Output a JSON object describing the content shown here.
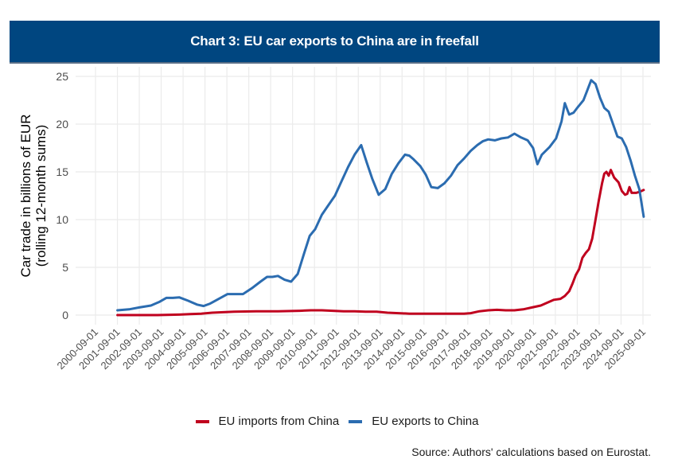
{
  "title": "Chart 3: EU car exports to China are in freefall",
  "source": "Source: Authors' calculations based on Eurostat.",
  "chart_data": {
    "type": "line",
    "title": "Chart 3: EU car exports to China are in freefall",
    "xlabel": "",
    "ylabel": [
      "Car trade in billions of EUR",
      "(rolling 12-month sums)"
    ],
    "ylim": [
      0,
      25
    ],
    "yticks": [
      0,
      5,
      10,
      15,
      20,
      25
    ],
    "xlim_years": [
      2000.0,
      2026.0
    ],
    "xticks": [
      {
        "t": 2000.667,
        "label": "2000-09-01"
      },
      {
        "t": 2001.667,
        "label": "2001-09-01"
      },
      {
        "t": 2002.667,
        "label": "2002-09-01"
      },
      {
        "t": 2003.667,
        "label": "2003-09-01"
      },
      {
        "t": 2004.667,
        "label": "2004-09-01"
      },
      {
        "t": 2005.667,
        "label": "2005-09-01"
      },
      {
        "t": 2006.667,
        "label": "2006-09-01"
      },
      {
        "t": 2007.667,
        "label": "2007-09-01"
      },
      {
        "t": 2008.667,
        "label": "2008-09-01"
      },
      {
        "t": 2009.667,
        "label": "2009-09-01"
      },
      {
        "t": 2010.667,
        "label": "2010-09-01"
      },
      {
        "t": 2011.667,
        "label": "2011-09-01"
      },
      {
        "t": 2012.667,
        "label": "2012-09-01"
      },
      {
        "t": 2013.667,
        "label": "2013-09-01"
      },
      {
        "t": 2014.667,
        "label": "2014-09-01"
      },
      {
        "t": 2015.667,
        "label": "2015-09-01"
      },
      {
        "t": 2016.667,
        "label": "2016-09-01"
      },
      {
        "t": 2017.667,
        "label": "2017-09-01"
      },
      {
        "t": 2018.667,
        "label": "2018-09-01"
      },
      {
        "t": 2019.667,
        "label": "2019-09-01"
      },
      {
        "t": 2020.667,
        "label": "2020-09-01"
      },
      {
        "t": 2021.667,
        "label": "2021-09-01"
      },
      {
        "t": 2022.667,
        "label": "2022-09-01"
      },
      {
        "t": 2023.667,
        "label": "2023-09-01"
      },
      {
        "t": 2024.667,
        "label": "2024-09-01"
      },
      {
        "t": 2025.667,
        "label": "2025-09-01"
      }
    ],
    "grid": true,
    "legend_position": "bottom",
    "series": [
      {
        "name": "EU imports from China",
        "color": "#c0001e",
        "points": [
          [
            2001.67,
            0.0
          ],
          [
            2002.5,
            0.0
          ],
          [
            2003.5,
            0.0
          ],
          [
            2004.5,
            0.05
          ],
          [
            2005.0,
            0.1
          ],
          [
            2005.5,
            0.15
          ],
          [
            2006.0,
            0.25
          ],
          [
            2006.5,
            0.3
          ],
          [
            2007.0,
            0.35
          ],
          [
            2008.0,
            0.4
          ],
          [
            2009.0,
            0.4
          ],
          [
            2010.0,
            0.45
          ],
          [
            2010.5,
            0.5
          ],
          [
            2011.0,
            0.5
          ],
          [
            2011.5,
            0.45
          ],
          [
            2012.0,
            0.4
          ],
          [
            2012.5,
            0.4
          ],
          [
            2013.0,
            0.35
          ],
          [
            2013.5,
            0.35
          ],
          [
            2014.0,
            0.25
          ],
          [
            2014.5,
            0.2
          ],
          [
            2015.0,
            0.15
          ],
          [
            2015.5,
            0.15
          ],
          [
            2016.0,
            0.15
          ],
          [
            2016.5,
            0.15
          ],
          [
            2017.0,
            0.15
          ],
          [
            2017.5,
            0.15
          ],
          [
            2017.8,
            0.2
          ],
          [
            2018.2,
            0.4
          ],
          [
            2018.6,
            0.5
          ],
          [
            2019.0,
            0.55
          ],
          [
            2019.4,
            0.5
          ],
          [
            2019.8,
            0.5
          ],
          [
            2020.2,
            0.6
          ],
          [
            2020.6,
            0.8
          ],
          [
            2021.0,
            1.0
          ],
          [
            2021.3,
            1.3
          ],
          [
            2021.6,
            1.6
          ],
          [
            2021.9,
            1.7
          ],
          [
            2022.1,
            2.0
          ],
          [
            2022.3,
            2.5
          ],
          [
            2022.45,
            3.3
          ],
          [
            2022.6,
            4.2
          ],
          [
            2022.75,
            4.8
          ],
          [
            2022.9,
            6.0
          ],
          [
            2023.05,
            6.5
          ],
          [
            2023.2,
            6.9
          ],
          [
            2023.35,
            8.0
          ],
          [
            2023.5,
            10.0
          ],
          [
            2023.65,
            12.0
          ],
          [
            2023.8,
            13.8
          ],
          [
            2023.9,
            14.8
          ],
          [
            2024.0,
            15.0
          ],
          [
            2024.1,
            14.6
          ],
          [
            2024.2,
            15.2
          ],
          [
            2024.35,
            14.4
          ],
          [
            2024.55,
            13.9
          ],
          [
            2024.7,
            13.0
          ],
          [
            2024.85,
            12.6
          ],
          [
            2024.95,
            12.7
          ],
          [
            2025.05,
            13.4
          ],
          [
            2025.15,
            12.8
          ],
          [
            2025.35,
            12.8
          ],
          [
            2025.5,
            12.9
          ],
          [
            2025.7,
            13.1
          ]
        ]
      },
      {
        "name": "EU exports to China",
        "color": "#2b6cb0",
        "points": [
          [
            2001.67,
            0.5
          ],
          [
            2002.2,
            0.6
          ],
          [
            2002.67,
            0.8
          ],
          [
            2003.2,
            1.0
          ],
          [
            2003.6,
            1.4
          ],
          [
            2003.9,
            1.8
          ],
          [
            2004.2,
            1.8
          ],
          [
            2004.5,
            1.85
          ],
          [
            2004.9,
            1.5
          ],
          [
            2005.3,
            1.1
          ],
          [
            2005.6,
            0.95
          ],
          [
            2005.9,
            1.2
          ],
          [
            2006.3,
            1.7
          ],
          [
            2006.7,
            2.2
          ],
          [
            2007.1,
            2.2
          ],
          [
            2007.4,
            2.2
          ],
          [
            2007.8,
            2.8
          ],
          [
            2008.2,
            3.5
          ],
          [
            2008.5,
            4.0
          ],
          [
            2008.75,
            4.0
          ],
          [
            2009.0,
            4.1
          ],
          [
            2009.3,
            3.7
          ],
          [
            2009.6,
            3.5
          ],
          [
            2009.9,
            4.3
          ],
          [
            2010.2,
            6.5
          ],
          [
            2010.45,
            8.3
          ],
          [
            2010.7,
            9.0
          ],
          [
            2011.0,
            10.5
          ],
          [
            2011.3,
            11.5
          ],
          [
            2011.6,
            12.5
          ],
          [
            2011.9,
            14.0
          ],
          [
            2012.2,
            15.5
          ],
          [
            2012.5,
            16.8
          ],
          [
            2012.8,
            17.8
          ],
          [
            2013.05,
            16.0
          ],
          [
            2013.3,
            14.3
          ],
          [
            2013.6,
            12.6
          ],
          [
            2013.9,
            13.2
          ],
          [
            2014.2,
            14.8
          ],
          [
            2014.5,
            15.9
          ],
          [
            2014.8,
            16.8
          ],
          [
            2015.0,
            16.7
          ],
          [
            2015.2,
            16.3
          ],
          [
            2015.5,
            15.6
          ],
          [
            2015.75,
            14.7
          ],
          [
            2016.0,
            13.4
          ],
          [
            2016.3,
            13.3
          ],
          [
            2016.6,
            13.8
          ],
          [
            2016.9,
            14.6
          ],
          [
            2017.2,
            15.7
          ],
          [
            2017.5,
            16.4
          ],
          [
            2017.8,
            17.2
          ],
          [
            2018.1,
            17.8
          ],
          [
            2018.35,
            18.2
          ],
          [
            2018.6,
            18.4
          ],
          [
            2018.9,
            18.3
          ],
          [
            2019.2,
            18.5
          ],
          [
            2019.5,
            18.6
          ],
          [
            2019.8,
            19.0
          ],
          [
            2020.1,
            18.6
          ],
          [
            2020.4,
            18.3
          ],
          [
            2020.65,
            17.5
          ],
          [
            2020.85,
            15.8
          ],
          [
            2021.05,
            16.8
          ],
          [
            2021.4,
            17.6
          ],
          [
            2021.7,
            18.5
          ],
          [
            2021.95,
            20.3
          ],
          [
            2022.1,
            22.2
          ],
          [
            2022.3,
            21.0
          ],
          [
            2022.5,
            21.2
          ],
          [
            2022.7,
            21.8
          ],
          [
            2022.95,
            22.5
          ],
          [
            2023.1,
            23.4
          ],
          [
            2023.3,
            24.6
          ],
          [
            2023.5,
            24.2
          ],
          [
            2023.7,
            22.8
          ],
          [
            2023.9,
            21.7
          ],
          [
            2024.1,
            21.3
          ],
          [
            2024.3,
            20.0
          ],
          [
            2024.5,
            18.7
          ],
          [
            2024.7,
            18.5
          ],
          [
            2024.9,
            17.6
          ],
          [
            2025.1,
            16.2
          ],
          [
            2025.3,
            14.6
          ],
          [
            2025.5,
            13.2
          ],
          [
            2025.7,
            10.3
          ]
        ]
      }
    ]
  }
}
